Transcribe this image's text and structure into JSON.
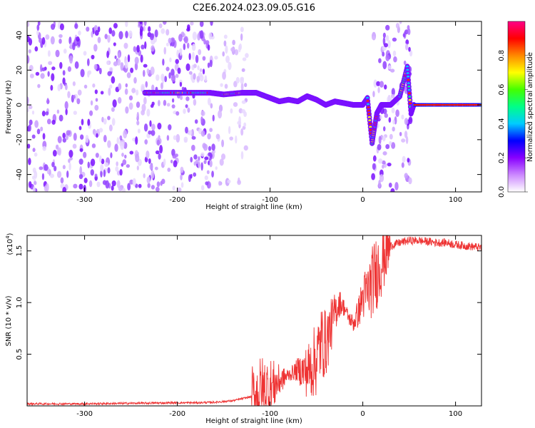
{
  "title": "C2E6.2024.023.09.05.G16",
  "chart_data": [
    {
      "type": "heatmap",
      "xlabel": "Height of straight line (km)",
      "ylabel": "Frequency (Hz)",
      "xlim": [
        -362,
        128
      ],
      "ylim": [
        -50,
        48
      ],
      "xticks": [
        -300,
        -200,
        -100,
        0,
        100
      ],
      "yticks": [
        -40,
        -20,
        0,
        20,
        40
      ],
      "colorbar": {
        "label": "Normalized spectral amplitude",
        "range": [
          0.0,
          1.0
        ],
        "ticks": [
          "0.0",
          "0.2",
          "0.4",
          "0.6",
          "0.8"
        ],
        "colors": [
          "#ffffff",
          "#cc88ff",
          "#8800ff",
          "#0000ff",
          "#00ccff",
          "#00ff88",
          "#44ff00",
          "#ffff00",
          "#ff8800",
          "#ff0000",
          "#ff0088"
        ]
      },
      "noise_band_segments_km": [
        [
          -362,
          -160
        ],
        [
          -160,
          -125
        ],
        [
          10,
          52
        ]
      ],
      "ridge": {
        "x": [
          -235,
          -215,
          -190,
          -165,
          -150,
          -130,
          -115,
          -100,
          -90,
          -80,
          -70,
          -60,
          -50,
          -40,
          -30,
          -20,
          -10,
          0,
          5,
          10,
          15,
          20,
          30,
          40,
          48,
          52,
          55,
          70,
          90,
          110,
          128
        ],
        "y": [
          7,
          7,
          7,
          7,
          6,
          7,
          7,
          4,
          2,
          3,
          2,
          5,
          3,
          0,
          2,
          1,
          0,
          0,
          4,
          -22,
          -5,
          0,
          0,
          5,
          22,
          -5,
          0,
          0,
          0,
          0,
          0
        ]
      }
    },
    {
      "type": "line",
      "xlabel": "Height of straight line (km)",
      "ylabel": "SNR (10 * v/v)",
      "multiplier_label": "(x10",
      "multiplier_exp": "4",
      "xlim": [
        -362,
        128
      ],
      "ylim": [
        0,
        1.65
      ],
      "xticks": [
        -300,
        -200,
        -100,
        0,
        100
      ],
      "yticks": [
        0.5,
        1.0,
        1.5
      ],
      "ytick_labels": [
        "0.5",
        "1.0",
        "1.5"
      ],
      "color": "#ee3333",
      "series": [
        {
          "x": [
            -362,
            -300,
            -250,
            -200,
            -180,
            -160,
            -140,
            -130,
            -120,
            -110,
            -100,
            -90,
            -80,
            -70,
            -60,
            -50,
            -45,
            -40,
            -35,
            -30,
            -25,
            -20,
            -15,
            -10,
            -5,
            0,
            5,
            10,
            15,
            20,
            25,
            30,
            40,
            50,
            60,
            70,
            80,
            90,
            100,
            110,
            120,
            128
          ],
          "y": [
            0.02,
            0.02,
            0.025,
            0.03,
            0.03,
            0.035,
            0.05,
            0.07,
            0.09,
            0.12,
            0.17,
            0.24,
            0.3,
            0.35,
            0.33,
            0.45,
            0.62,
            0.6,
            0.75,
            0.9,
            1.0,
            0.95,
            0.85,
            0.8,
            0.9,
            1.05,
            1.1,
            1.2,
            1.3,
            1.4,
            1.5,
            1.55,
            1.58,
            1.6,
            1.6,
            1.59,
            1.58,
            1.58,
            1.56,
            1.55,
            1.54,
            1.53
          ]
        }
      ]
    }
  ]
}
